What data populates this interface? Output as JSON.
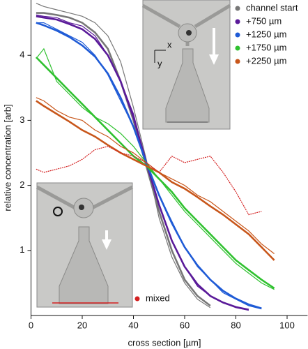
{
  "chart_data": {
    "type": "line",
    "xlabel": "cross section [µm]",
    "ylabel": "relative concentration [arb]",
    "x": [
      2,
      5,
      10,
      15,
      20,
      25,
      30,
      35,
      40,
      45,
      50,
      55,
      60,
      65,
      70,
      75,
      80,
      85,
      90,
      95
    ],
    "xlim": [
      0,
      108
    ],
    "xticks": [
      0,
      20,
      40,
      60,
      80,
      100
    ],
    "ylim": [
      0,
      4.85
    ],
    "yticks": [
      1,
      2,
      3,
      4
    ],
    "inset_labels": [
      "x",
      "y"
    ],
    "series": [
      {
        "name": "channel start",
        "color": "#777777",
        "values": [
          4.8,
          4.75,
          4.7,
          4.65,
          4.6,
          4.5,
          4.3,
          3.9,
          3.2,
          2.4,
          1.5,
          0.9,
          0.5,
          0.25,
          0.12,
          null,
          null,
          null,
          null,
          null
        ],
        "fit": [
          4.65,
          4.65,
          4.62,
          4.58,
          4.5,
          4.35,
          4.1,
          3.6,
          3.0,
          2.3,
          1.6,
          1.0,
          0.55,
          0.3,
          0.15,
          null,
          null,
          null,
          null,
          null
        ]
      },
      {
        "name": "+750 µm",
        "color": "#5a1a99",
        "values": [
          4.62,
          4.6,
          4.58,
          4.5,
          4.45,
          4.3,
          4.0,
          3.6,
          3.1,
          2.35,
          1.7,
          1.15,
          0.75,
          0.45,
          0.3,
          0.2,
          0.12,
          0.08,
          null,
          null
        ],
        "fit": [
          4.6,
          4.58,
          4.55,
          4.48,
          4.4,
          4.25,
          4.0,
          3.6,
          3.05,
          2.35,
          1.7,
          1.15,
          0.75,
          0.48,
          0.3,
          0.2,
          0.13,
          0.09,
          null,
          null
        ]
      },
      {
        "name": "+1250 µm",
        "color": "#1f5bd6",
        "values": [
          4.5,
          4.5,
          4.4,
          4.3,
          4.2,
          4.0,
          3.7,
          3.3,
          2.9,
          2.35,
          1.85,
          1.45,
          1.05,
          0.75,
          0.55,
          0.35,
          0.25,
          0.15,
          0.1,
          null
        ],
        "fit": [
          4.5,
          4.46,
          4.38,
          4.28,
          4.15,
          3.98,
          3.72,
          3.35,
          2.9,
          2.35,
          1.85,
          1.42,
          1.05,
          0.77,
          0.55,
          0.38,
          0.26,
          0.17,
          0.11,
          null
        ]
      },
      {
        "name": "+1750 µm",
        "color": "#2fc12f",
        "values": [
          3.95,
          4.1,
          3.6,
          3.4,
          3.2,
          3.05,
          2.95,
          2.8,
          2.6,
          2.35,
          2.1,
          1.85,
          1.6,
          1.4,
          1.2,
          1.0,
          0.8,
          0.65,
          0.5,
          0.4
        ],
        "fit": [
          3.97,
          3.85,
          3.65,
          3.45,
          3.25,
          3.05,
          2.85,
          2.65,
          2.45,
          2.3,
          2.1,
          1.9,
          1.65,
          1.45,
          1.25,
          1.05,
          0.85,
          0.7,
          0.55,
          0.42
        ]
      },
      {
        "name": "+2250 µm",
        "color": "#c8561a",
        "values": [
          3.35,
          3.3,
          3.15,
          3.05,
          3.0,
          2.85,
          2.75,
          2.6,
          2.5,
          2.35,
          2.2,
          2.1,
          2.0,
          1.85,
          1.75,
          1.6,
          1.45,
          1.3,
          1.1,
          0.95
        ],
        "fit": [
          3.3,
          3.22,
          3.1,
          2.98,
          2.85,
          2.75,
          2.62,
          2.5,
          2.4,
          2.3,
          2.2,
          2.05,
          1.95,
          1.82,
          1.68,
          1.55,
          1.4,
          1.25,
          1.05,
          0.85
        ]
      },
      {
        "name": "mixed",
        "color": "#d42020",
        "values": [
          2.25,
          2.2,
          2.25,
          2.3,
          2.4,
          2.55,
          2.6,
          2.5,
          2.45,
          2.35,
          2.2,
          2.45,
          2.35,
          2.4,
          2.45,
          2.2,
          1.9,
          1.55,
          1.6,
          null
        ]
      }
    ]
  }
}
